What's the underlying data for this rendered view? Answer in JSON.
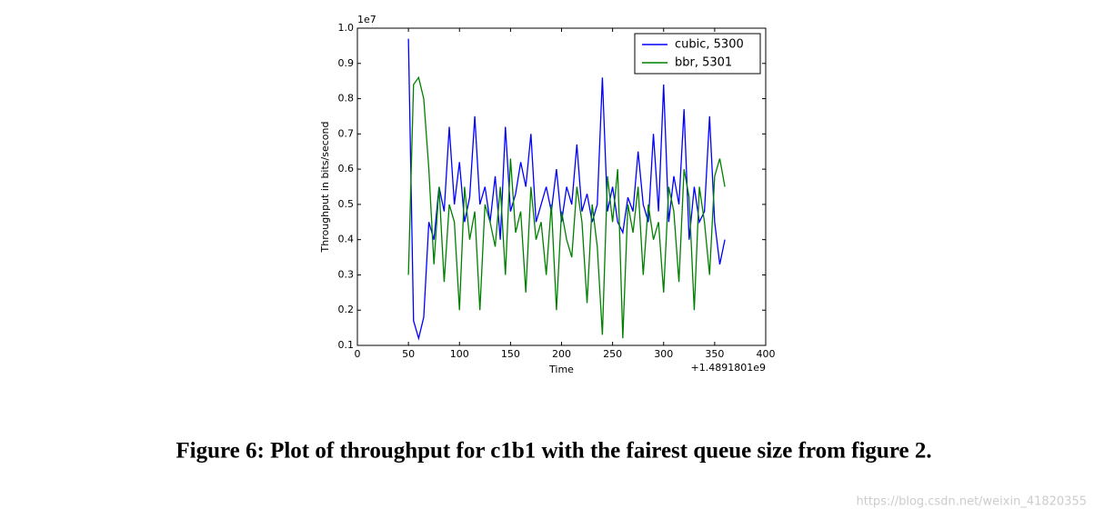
{
  "chart_data": {
    "type": "line",
    "xlabel": "Time",
    "ylabel": "Throughput in bits/second",
    "y_offset_label": "1e7",
    "x_offset_label": "+1.4891801e9",
    "caption": "Figure 6: Plot of throughput for c1b1 with the fairest queue size from figure 2.",
    "watermark": "https://blog.csdn.net/weixin_41820355",
    "x": [
      50,
      55,
      60,
      65,
      70,
      75,
      80,
      85,
      90,
      95,
      100,
      105,
      110,
      115,
      120,
      125,
      130,
      135,
      140,
      145,
      150,
      155,
      160,
      165,
      170,
      175,
      180,
      185,
      190,
      195,
      200,
      205,
      210,
      215,
      220,
      225,
      230,
      235,
      240,
      245,
      250,
      255,
      260,
      265,
      270,
      275,
      280,
      285,
      290,
      295,
      300,
      305,
      310,
      315,
      320,
      325,
      330,
      335,
      340,
      345,
      350,
      355,
      360
    ],
    "series": [
      {
        "name": "cubic, 5300",
        "color": "#0000ff",
        "values": [
          0.97,
          0.17,
          0.12,
          0.18,
          0.45,
          0.4,
          0.55,
          0.48,
          0.72,
          0.5,
          0.62,
          0.45,
          0.52,
          0.75,
          0.5,
          0.55,
          0.45,
          0.58,
          0.4,
          0.72,
          0.48,
          0.53,
          0.62,
          0.55,
          0.7,
          0.45,
          0.5,
          0.55,
          0.48,
          0.6,
          0.45,
          0.55,
          0.5,
          0.67,
          0.48,
          0.53,
          0.45,
          0.5,
          0.86,
          0.48,
          0.55,
          0.45,
          0.42,
          0.52,
          0.48,
          0.65,
          0.5,
          0.45,
          0.7,
          0.48,
          0.84,
          0.45,
          0.58,
          0.5,
          0.77,
          0.4,
          0.55,
          0.45,
          0.48,
          0.75,
          0.45,
          0.33,
          0.4
        ]
      },
      {
        "name": "bbr, 5301",
        "color": "#008000",
        "values": [
          0.3,
          0.84,
          0.86,
          0.8,
          0.6,
          0.33,
          0.55,
          0.28,
          0.5,
          0.45,
          0.2,
          0.55,
          0.4,
          0.48,
          0.2,
          0.5,
          0.45,
          0.38,
          0.55,
          0.3,
          0.63,
          0.42,
          0.48,
          0.25,
          0.55,
          0.4,
          0.45,
          0.3,
          0.5,
          0.2,
          0.48,
          0.4,
          0.35,
          0.55,
          0.45,
          0.22,
          0.5,
          0.38,
          0.13,
          0.58,
          0.45,
          0.6,
          0.12,
          0.5,
          0.42,
          0.55,
          0.3,
          0.5,
          0.4,
          0.45,
          0.25,
          0.55,
          0.48,
          0.28,
          0.6,
          0.52,
          0.2,
          0.55,
          0.45,
          0.3,
          0.58,
          0.63,
          0.55
        ]
      }
    ],
    "xlim": [
      0,
      400
    ],
    "xticks": [
      0,
      50,
      100,
      150,
      200,
      250,
      300,
      350,
      400
    ],
    "ylim": [
      0.1,
      1
    ],
    "yticks": [
      0.1,
      0.2,
      0.3,
      0.4,
      0.5,
      0.6,
      0.7,
      0.8,
      0.9,
      {
        "value": 1,
        "label": "1.0"
      }
    ],
    "legend": "upper right"
  }
}
